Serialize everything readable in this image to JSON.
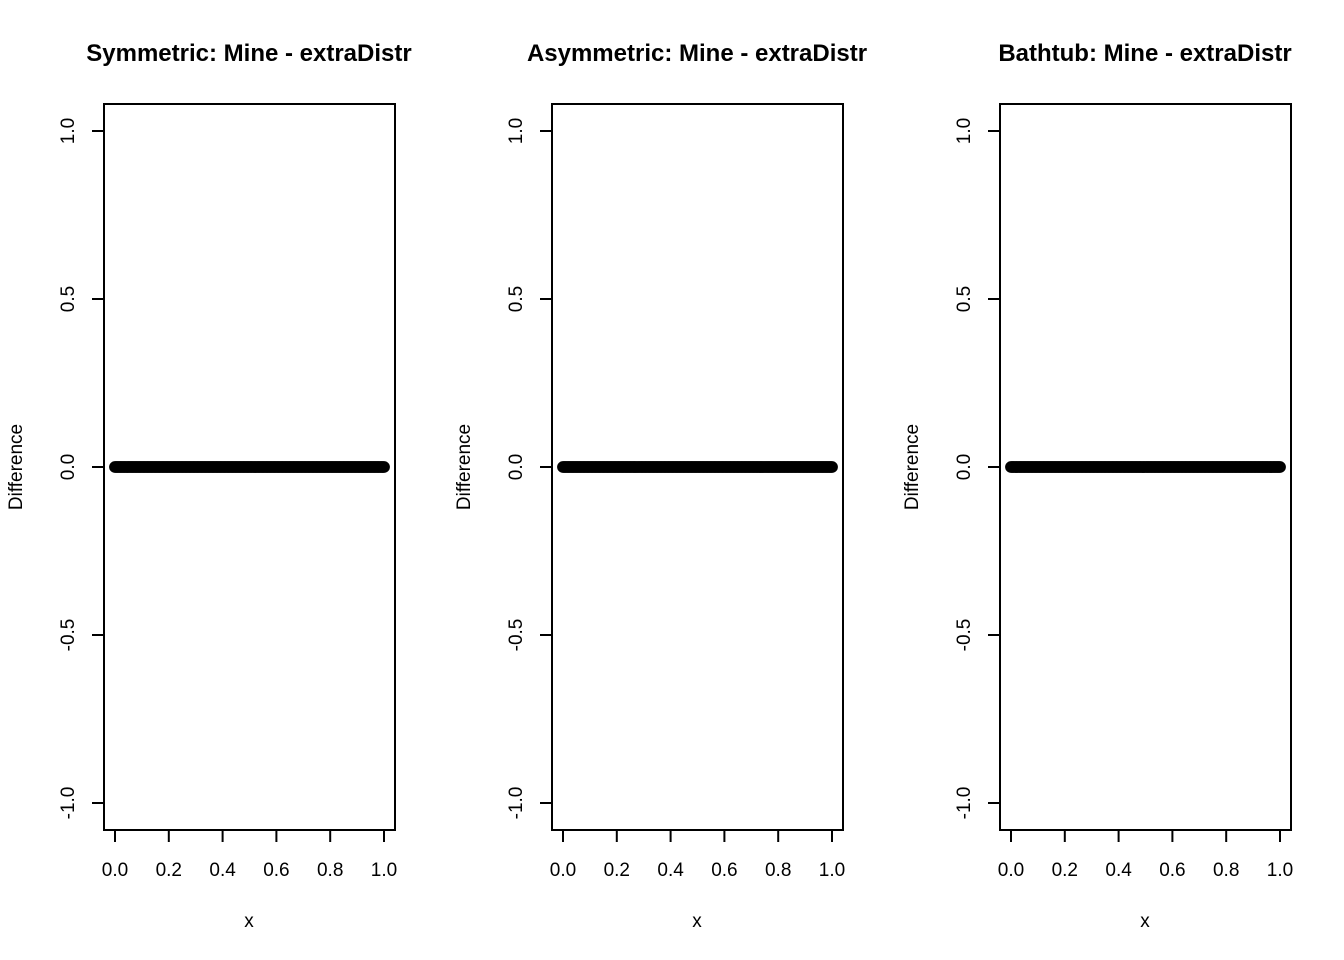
{
  "chart_data": [
    {
      "type": "scatter",
      "title": "Symmetric: Mine - extraDistr",
      "xlabel": "x",
      "ylabel": "Difference",
      "xlim": [
        0,
        1
      ],
      "ylim": [
        -1,
        1
      ],
      "xticks": [
        "0.0",
        "0.2",
        "0.4",
        "0.6",
        "0.8",
        "1.0"
      ],
      "yticks": [
        "-1.0",
        "-0.5",
        "0.0",
        "0.5",
        "1.0"
      ],
      "x_range": [
        0,
        1
      ],
      "y_value": 0,
      "n_points": 200,
      "grid": false,
      "point_color": "#000000"
    },
    {
      "type": "scatter",
      "title": "Asymmetric: Mine - extraDistr",
      "xlabel": "x",
      "ylabel": "Difference",
      "xlim": [
        0,
        1
      ],
      "ylim": [
        -1,
        1
      ],
      "xticks": [
        "0.0",
        "0.2",
        "0.4",
        "0.6",
        "0.8",
        "1.0"
      ],
      "yticks": [
        "-1.0",
        "-0.5",
        "0.0",
        "0.5",
        "1.0"
      ],
      "x_range": [
        0,
        1
      ],
      "y_value": 0,
      "n_points": 200,
      "grid": false,
      "point_color": "#000000"
    },
    {
      "type": "scatter",
      "title": "Bathtub: Mine - extraDistr",
      "xlabel": "x",
      "ylabel": "Difference",
      "xlim": [
        0,
        1
      ],
      "ylim": [
        -1,
        1
      ],
      "xticks": [
        "0.0",
        "0.2",
        "0.4",
        "0.6",
        "0.8",
        "1.0"
      ],
      "yticks": [
        "-1.0",
        "-0.5",
        "0.0",
        "0.5",
        "1.0"
      ],
      "x_range": [
        0,
        1
      ],
      "y_value": 0,
      "n_points": 200,
      "grid": false,
      "point_color": "#000000"
    }
  ]
}
